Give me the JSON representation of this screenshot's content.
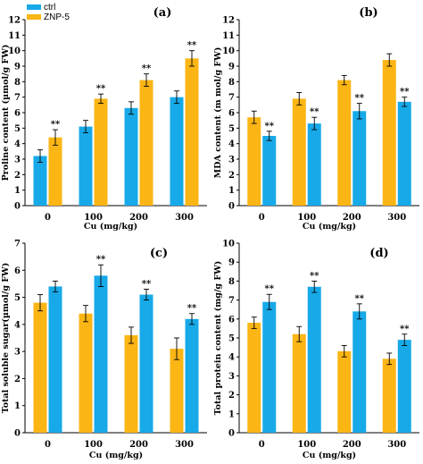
{
  "legend": {
    "position": "top-left",
    "items": [
      {
        "label": "ctrl",
        "color": "#17a9e8"
      },
      {
        "label": "ZNP-5",
        "color": "#fbb514"
      }
    ]
  },
  "chart_data": [
    {
      "type": "bar",
      "panel_label": "(a)",
      "xlabel": "",
      "ylabel": "Proline content (µmol/g FW)",
      "ylim": [
        0,
        12
      ],
      "yticks": [
        0,
        1,
        2,
        3,
        4,
        5,
        6,
        7,
        8,
        9,
        10,
        11,
        12
      ],
      "categories": [
        "0",
        "100",
        "200",
        "300"
      ],
      "series": [
        {
          "name": "ctrl",
          "color": "#17a9e8",
          "values": [
            3.2,
            5.1,
            6.3,
            7.0
          ],
          "errors": [
            0.4,
            0.4,
            0.4,
            0.4
          ],
          "marks": [
            "",
            "",
            "",
            ""
          ]
        },
        {
          "name": "ZNP-5",
          "color": "#fbb514",
          "values": [
            4.4,
            6.9,
            8.1,
            9.5
          ],
          "errors": [
            0.5,
            0.3,
            0.4,
            0.5
          ],
          "marks": [
            "**",
            "**",
            "**",
            "**"
          ]
        }
      ]
    },
    {
      "type": "bar",
      "panel_label": "(b)",
      "xlabel": "Cu (mg/kg)",
      "ylabel": "MDA content (m mol/g FW)",
      "ylim": [
        0,
        12
      ],
      "yticks": [
        0,
        1,
        2,
        3,
        4,
        5,
        6,
        7,
        8,
        9,
        10,
        11,
        12
      ],
      "categories": [
        "0",
        "100",
        "200",
        "300"
      ],
      "series": [
        {
          "name": "ZNP-5",
          "color": "#fbb514",
          "values": [
            5.7,
            6.9,
            8.1,
            9.4
          ],
          "errors": [
            0.4,
            0.4,
            0.3,
            0.4
          ],
          "marks": [
            "",
            "",
            "",
            ""
          ]
        },
        {
          "name": "ctrl",
          "color": "#17a9e8",
          "values": [
            4.5,
            5.3,
            6.1,
            6.7
          ],
          "errors": [
            0.3,
            0.4,
            0.5,
            0.3
          ],
          "marks": [
            "**",
            "**",
            "**",
            "**"
          ]
        }
      ]
    },
    {
      "type": "bar",
      "panel_label": "(c)",
      "xlabel": "Cu (mg/kg)",
      "ylabel": "Total soluble sugar(µmol/g FW)",
      "ylim": [
        0,
        7
      ],
      "yticks": [
        0,
        1,
        2,
        3,
        4,
        5,
        6,
        7
      ],
      "categories": [
        "0",
        "100",
        "200",
        "300"
      ],
      "series": [
        {
          "name": "ZNP-5",
          "color": "#fbb514",
          "values": [
            4.8,
            4.4,
            3.6,
            3.1
          ],
          "errors": [
            0.3,
            0.3,
            0.3,
            0.4
          ],
          "marks": [
            "",
            "",
            "",
            ""
          ]
        },
        {
          "name": "ctrl",
          "color": "#17a9e8",
          "values": [
            5.4,
            5.8,
            5.1,
            4.2
          ],
          "errors": [
            0.2,
            0.4,
            0.2,
            0.2
          ],
          "marks": [
            "",
            "**",
            "**",
            "**"
          ]
        }
      ]
    },
    {
      "type": "bar",
      "panel_label": "(d)",
      "xlabel": "Cu (mg/kg)",
      "ylabel": "Total protein content (mg/g FW)",
      "ylim": [
        0,
        10
      ],
      "yticks": [
        0,
        1,
        2,
        3,
        4,
        5,
        6,
        7,
        8,
        9,
        10
      ],
      "categories": [
        "0",
        "100",
        "200",
        "300"
      ],
      "series": [
        {
          "name": "ZNP-5",
          "color": "#fbb514",
          "values": [
            5.8,
            5.2,
            4.3,
            3.9
          ],
          "errors": [
            0.3,
            0.4,
            0.3,
            0.3
          ],
          "marks": [
            "",
            "",
            "",
            ""
          ]
        },
        {
          "name": "ctrl",
          "color": "#17a9e8",
          "values": [
            6.9,
            7.7,
            6.4,
            4.9
          ],
          "errors": [
            0.4,
            0.3,
            0.4,
            0.3
          ],
          "marks": [
            "**",
            "**",
            "**",
            "**"
          ]
        }
      ]
    }
  ],
  "shared": {
    "xlabel_a": "Cu (mg/kg)"
  }
}
